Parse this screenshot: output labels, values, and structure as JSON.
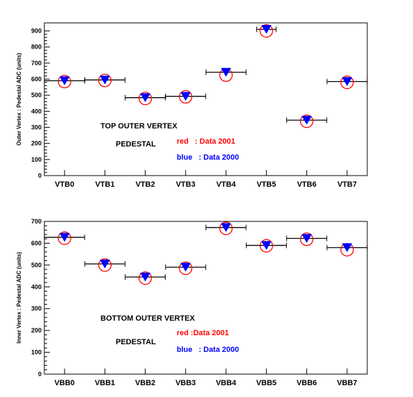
{
  "chart_data": [
    {
      "type": "scatter",
      "title": "",
      "ylabel": "Outer Vertex : Pedestal ADC (units)",
      "ylim": [
        0,
        950
      ],
      "yticks": [
        0,
        100,
        200,
        300,
        400,
        500,
        600,
        700,
        800,
        900
      ],
      "categories": [
        "VTB0",
        "VTB1",
        "VTB2",
        "VTB3",
        "VTB4",
        "VTB5",
        "VTB6",
        "VTB7"
      ],
      "series": [
        {
          "name": "Data 2001",
          "marker": "open-circle",
          "color": "#ff0000",
          "values": [
            585,
            592,
            480,
            490,
            625,
            900,
            338,
            580
          ]
        },
        {
          "name": "Data 2000",
          "marker": "filled-down-triangle",
          "color": "#0000ff",
          "values": [
            590,
            595,
            485,
            493,
            643,
            910,
            345,
            585
          ]
        }
      ],
      "annotations": [
        {
          "text": "TOP OUTER VERTEX",
          "color": "#000000"
        },
        {
          "text": "PEDESTAL",
          "color": "#000000"
        },
        {
          "text": "red   : Data 2001",
          "color": "#ff0000"
        },
        {
          "text": "blue   : Data 2000",
          "color": "#0000ff"
        }
      ]
    },
    {
      "type": "scatter",
      "title": "",
      "ylabel": "Inner Vertex : Pedestal ADC (units)",
      "ylim": [
        0,
        700
      ],
      "yticks": [
        0,
        100,
        200,
        300,
        400,
        500,
        600,
        700
      ],
      "categories": [
        "VBB0",
        "VBB1",
        "VBB2",
        "VBB3",
        "VBB4",
        "VBB5",
        "VBB6",
        "VBB7"
      ],
      "series": [
        {
          "name": "Data 2001",
          "marker": "open-circle",
          "color": "#ff0000",
          "values": [
            623,
            500,
            440,
            485,
            668,
            588,
            618,
            570
          ]
        },
        {
          "name": "Data 2000",
          "marker": "filled-down-triangle",
          "color": "#0000ff",
          "values": [
            627,
            505,
            445,
            490,
            672,
            590,
            622,
            580
          ]
        }
      ],
      "annotations": [
        {
          "text": "BOTTOM OUTER VERTEX",
          "color": "#000000"
        },
        {
          "text": "PEDESTAL",
          "color": "#000000"
        },
        {
          "text": "red :Data 2001",
          "color": "#ff0000"
        },
        {
          "text": "blue   : Data 2000",
          "color": "#0000ff"
        }
      ]
    }
  ]
}
